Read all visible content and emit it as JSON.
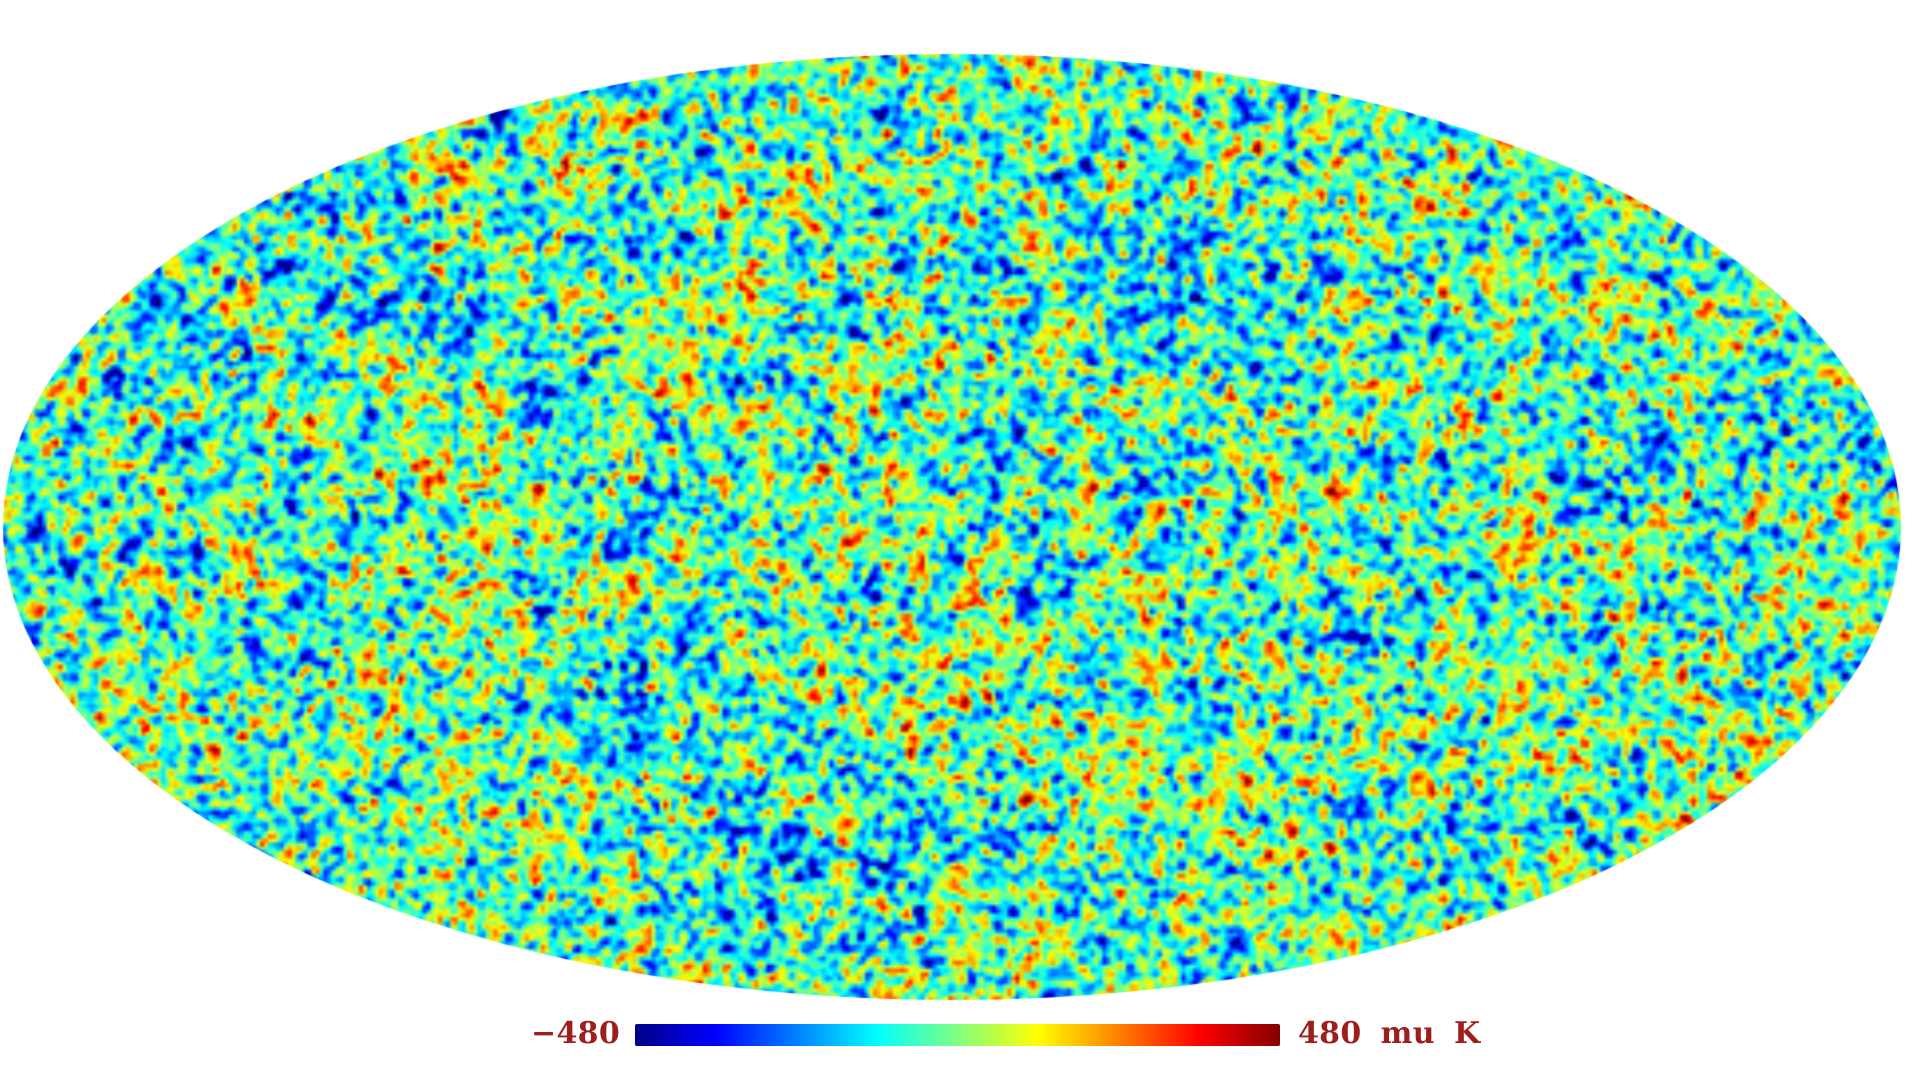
{
  "figure": {
    "background_color": "#ffffff"
  },
  "colorbar": {
    "min_label": "−480",
    "max_label": "480 mu K",
    "label_color": "#9e1e1e"
  },
  "chart_data": {
    "type": "heatmap",
    "title": "",
    "description": "All-sky cosmic microwave background temperature anisotropy map rendered as an ellipse (Mollweide projection) of fine-grained rainbow speckle noise, with a horizontal rainbow colorbar legend below",
    "projection": "mollweide",
    "value_range": {
      "min": -480,
      "max": 480,
      "units": "mu K"
    },
    "colorbar_tick_labels": [
      "-480",
      "480 mu K"
    ],
    "legend_position": "bottom-center",
    "grid": false,
    "colormap": "jet",
    "colormap_stops": [
      {
        "pos": 0,
        "color": "#000084"
      },
      {
        "pos": 0.125,
        "color": "#0000ff"
      },
      {
        "pos": 0.375,
        "color": "#00ffff"
      },
      {
        "pos": 0.625,
        "color": "#ffff00"
      },
      {
        "pos": 0.875,
        "color": "#ff0000"
      },
      {
        "pos": 1,
        "color": "#840000"
      }
    ]
  }
}
